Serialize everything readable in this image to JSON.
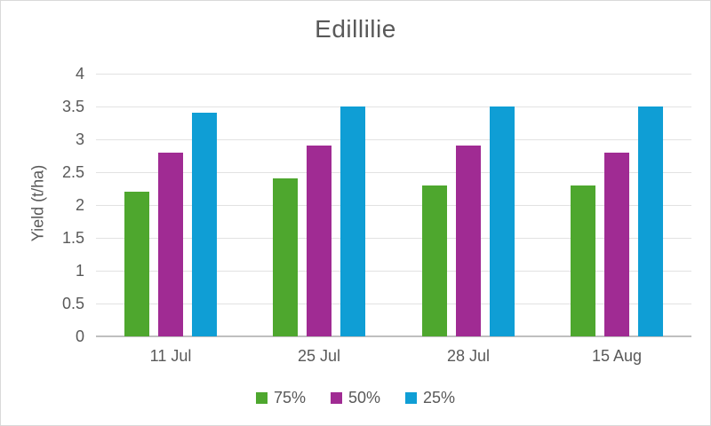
{
  "chart_data": {
    "type": "bar",
    "title": "Edillilie",
    "xlabel": "",
    "ylabel": "Yield (t/ha)",
    "categories": [
      "11 Jul",
      "25 Jul",
      "28 Jul",
      "15 Aug"
    ],
    "series": [
      {
        "name": "75%",
        "color": "#4EA72E",
        "values": [
          2.2,
          2.4,
          2.3,
          2.3
        ]
      },
      {
        "name": "50%",
        "color": "#A02B93",
        "values": [
          2.8,
          2.9,
          2.9,
          2.8
        ]
      },
      {
        "name": "25%",
        "color": "#0F9ED5",
        "values": [
          3.4,
          3.5,
          3.5,
          3.5
        ]
      }
    ],
    "ylim": [
      0,
      4
    ],
    "ytick_step": 0.5,
    "ytick_labels": [
      "0",
      "0.5",
      "1",
      "1.5",
      "2",
      "2.5",
      "3",
      "3.5",
      "4"
    ],
    "grid": true,
    "legend_position": "bottom"
  },
  "colors": {
    "text": "#595959",
    "gridline": "#E2E2E2",
    "axis_line": "#BFBFBF",
    "border": "#D9D9D9",
    "background": "#FFFFFF"
  }
}
